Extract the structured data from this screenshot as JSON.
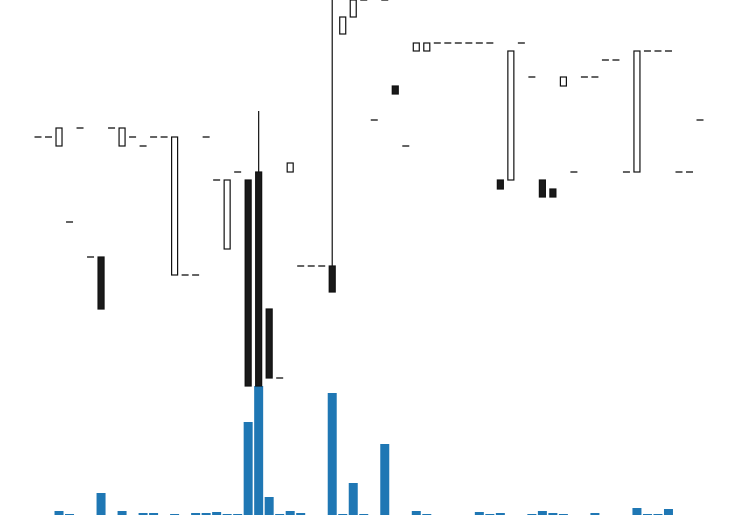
{
  "chart_data": {
    "type": "candlestick",
    "open": [
      24.9,
      24.9,
      24.0,
      16.4,
      25.8,
      12.9,
      12.9,
      25.8,
      24.0,
      24.9,
      24.0,
      24.9,
      24.9,
      11.1,
      11.1,
      11.1,
      24.9,
      20.6,
      13.7,
      21.4,
      20.6,
      21.4,
      7.7,
      0.8,
      21.4,
      12.0,
      12.0,
      12.0,
      12.0,
      35.2,
      36.9,
      38.6,
      26.6,
      38.6,
      30.0,
      24.0,
      33.5,
      33.5,
      34.3,
      34.3,
      34.3,
      34.3,
      34.3,
      34.3,
      20.6,
      20.6,
      34.3,
      30.9,
      20.6,
      19.7,
      30.0,
      21.4,
      30.9,
      30.9,
      32.6,
      32.6,
      21.4,
      21.4,
      33.5,
      33.5,
      33.5,
      21.4,
      21.4,
      26.6
    ],
    "high": [
      24.9,
      24.9,
      25.8,
      16.4,
      25.8,
      12.9,
      12.9,
      25.8,
      25.8,
      24.9,
      24.0,
      24.9,
      24.9,
      24.9,
      11.1,
      11.1,
      24.9,
      20.6,
      20.6,
      21.4,
      20.6,
      27.5,
      7.7,
      0.8,
      22.3,
      12.0,
      12.0,
      12.0,
      38.6,
      36.9,
      38.6,
      38.6,
      26.6,
      38.6,
      30.0,
      24.0,
      34.3,
      34.3,
      34.3,
      34.3,
      34.3,
      34.3,
      34.3,
      34.3,
      20.6,
      33.5,
      34.3,
      30.9,
      20.6,
      19.7,
      30.9,
      21.4,
      30.9,
      30.9,
      32.6,
      32.6,
      21.4,
      33.5,
      33.5,
      33.5,
      33.5,
      21.4,
      21.4,
      26.6
    ],
    "low": [
      24.9,
      24.9,
      24.0,
      16.4,
      25.8,
      12.9,
      7.7,
      25.8,
      24.0,
      24.9,
      24.0,
      24.9,
      24.9,
      11.1,
      11.1,
      11.1,
      24.9,
      20.6,
      13.7,
      21.4,
      0,
      0,
      0.8,
      0.8,
      21.4,
      12.0,
      12.0,
      12.0,
      9.4,
      35.2,
      36.9,
      38.6,
      26.6,
      38.6,
      29.2,
      24.0,
      33.5,
      33.5,
      34.3,
      34.3,
      34.3,
      34.3,
      34.3,
      34.3,
      19.7,
      20.6,
      34.3,
      30.9,
      18.9,
      18.9,
      30.0,
      21.4,
      30.9,
      30.9,
      32.6,
      32.6,
      21.4,
      21.4,
      33.5,
      33.5,
      33.5,
      21.4,
      21.4,
      26.6
    ],
    "close": [
      24.9,
      24.9,
      25.8,
      16.4,
      25.8,
      12.9,
      7.7,
      25.8,
      25.8,
      24.9,
      24.0,
      24.9,
      24.9,
      24.9,
      11.1,
      11.1,
      24.9,
      20.6,
      20.6,
      21.4,
      0,
      0,
      0.8,
      0.8,
      22.3,
      12.0,
      12.0,
      12.0,
      9.4,
      36.9,
      38.6,
      38.6,
      26.6,
      38.6,
      29.2,
      24.0,
      34.3,
      34.3,
      34.3,
      34.3,
      34.3,
      34.3,
      34.3,
      34.3,
      19.7,
      33.5,
      34.3,
      30.9,
      18.9,
      18.9,
      30.9,
      21.4,
      30.9,
      30.9,
      32.6,
      32.6,
      21.4,
      33.5,
      33.5,
      33.5,
      33.5,
      21.4,
      21.4,
      26.6
    ],
    "volume": [
      0,
      0,
      4,
      1,
      0,
      0,
      22,
      0,
      4,
      0,
      2,
      2,
      0,
      1,
      0,
      2,
      2,
      3,
      1,
      1,
      93,
      129,
      18,
      1,
      4,
      2,
      0,
      0,
      122,
      1,
      32,
      1,
      0,
      71,
      0,
      0,
      4,
      1,
      0,
      0,
      0,
      0,
      3,
      1,
      2,
      0,
      0,
      1,
      4,
      2,
      1,
      0,
      0,
      2,
      0,
      0,
      0,
      7,
      1,
      1,
      6,
      0,
      0,
      0
    ],
    "ylim": [
      0,
      38.6
    ],
    "volume_lim": [
      0,
      129
    ],
    "up_color": "#ffffff",
    "down_color": "#1a1a1a",
    "edge_color": "#111111",
    "volume_color": "#1f77b4"
  }
}
